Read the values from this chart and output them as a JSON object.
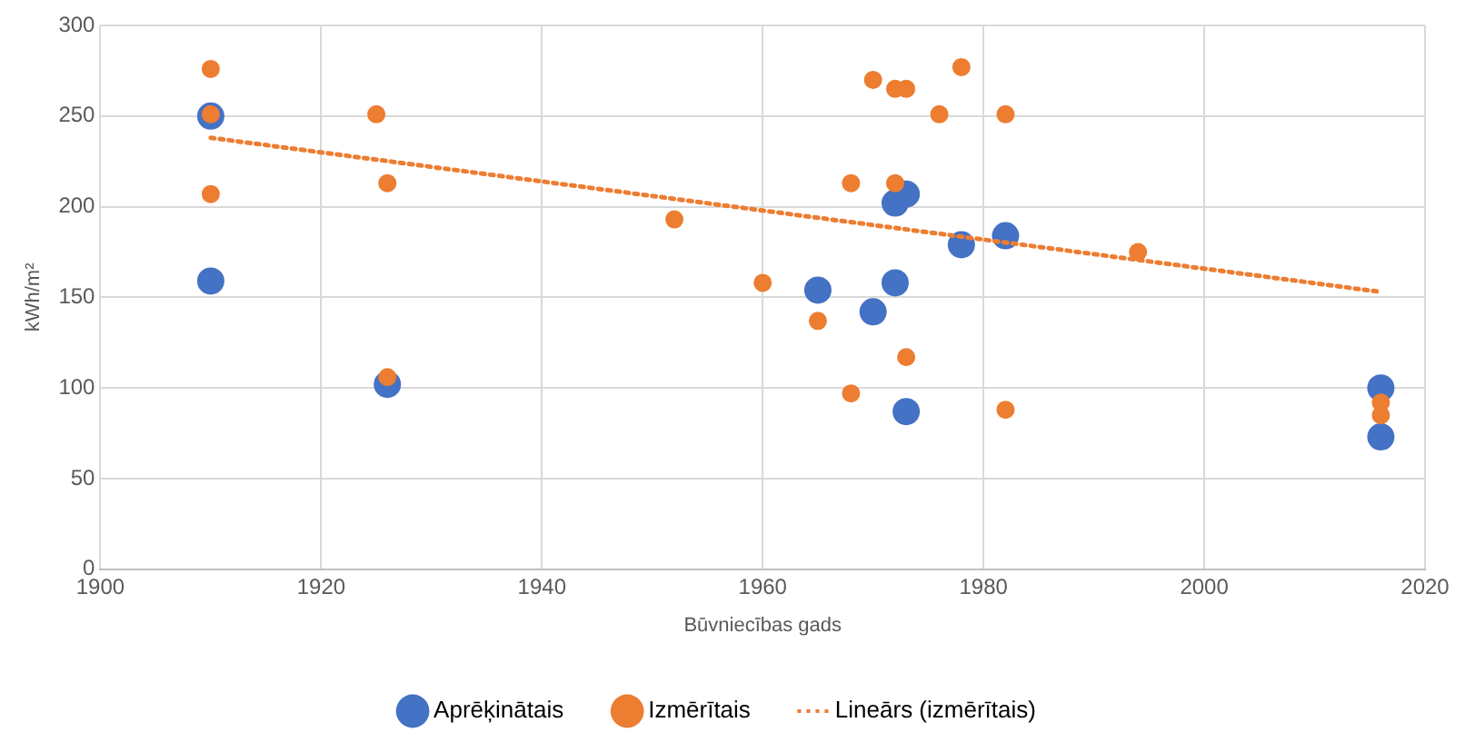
{
  "chart_data": {
    "type": "scatter",
    "xlabel": "Būvniecības gads",
    "ylabel": "kWh/m²",
    "xlim": [
      1900,
      2020
    ],
    "xticks": [
      1900,
      1920,
      1940,
      1960,
      1980,
      2000,
      2020
    ],
    "ylim": [
      0,
      300
    ],
    "yticks": [
      0,
      50,
      100,
      150,
      200,
      250,
      300
    ],
    "grid": true,
    "legend": "bottom",
    "marker": "circle",
    "series": [
      {
        "name": "Aprēķinātais",
        "color": "#4472c4",
        "x": [
          1910,
          1910,
          1926,
          1965,
          1970,
          1972,
          1972,
          1973,
          1973,
          1978,
          1982,
          2016,
          2016
        ],
        "values": [
          250,
          159,
          102,
          154,
          142,
          158,
          202,
          207,
          87,
          179,
          184,
          100,
          73
        ]
      },
      {
        "name": "Izmērītais",
        "color": "#ed7d31",
        "x": [
          1910,
          1910,
          1910,
          1925,
          1926,
          1926,
          1952,
          1960,
          1965,
          1968,
          1968,
          1970,
          1972,
          1973,
          1972,
          1973,
          1976,
          1978,
          1982,
          1982,
          1994,
          2016,
          2016
        ],
        "values": [
          276,
          251,
          207,
          251,
          213,
          106,
          193,
          158,
          137,
          213,
          97,
          270,
          265,
          265,
          213,
          117,
          251,
          277,
          251,
          88,
          175,
          92,
          85
        ]
      },
      {
        "name": "Lineārs (izmērītais)",
        "type": "line",
        "color": "#ed7d31",
        "line_style": "dotted",
        "marker": "none",
        "x": [
          1910,
          2016
        ],
        "values": [
          238,
          153
        ]
      }
    ]
  }
}
